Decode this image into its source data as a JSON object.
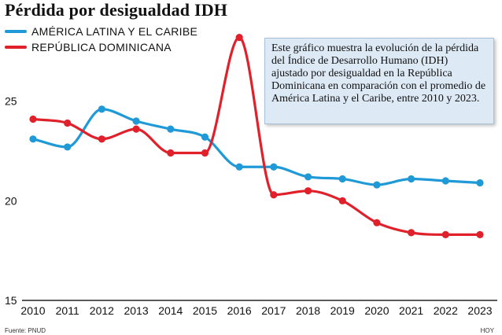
{
  "chart_data": {
    "type": "line",
    "title": "Pérdida por desigualdad IDH",
    "categories": [
      "2010",
      "2011",
      "2012",
      "2013",
      "2014",
      "2015",
      "2016",
      "2017",
      "2018",
      "2019",
      "2020",
      "2021",
      "2022",
      "2023"
    ],
    "ylim": [
      15,
      28.5
    ],
    "yticks": [
      15,
      20,
      25
    ],
    "series": [
      {
        "name": "AMÉRICA LATINA Y EL CARIBE",
        "color": "#1f9ad6",
        "values": [
          23.1,
          22.7,
          24.6,
          24.0,
          23.6,
          23.2,
          21.7,
          21.7,
          21.2,
          21.1,
          20.8,
          21.1,
          21.0,
          20.9
        ]
      },
      {
        "name": "REPÚBLICA DOMINICANA",
        "color": "#e0202a",
        "values": [
          24.1,
          23.9,
          23.1,
          23.6,
          22.4,
          22.4,
          28.2,
          20.3,
          20.5,
          20.0,
          18.9,
          18.4,
          18.3,
          18.3
        ]
      }
    ],
    "annotation": "Este gráfico muestra la evolución de la pérdida del Índice de Desarrollo Humano (IDH) ajustado por desigualdad en la República Dominicana en comparación con el promedio de América Latina y el Caribe, entre 2010 y 2023."
  },
  "footer": {
    "source": "Fuente: PNUD",
    "credit": "HOY"
  }
}
